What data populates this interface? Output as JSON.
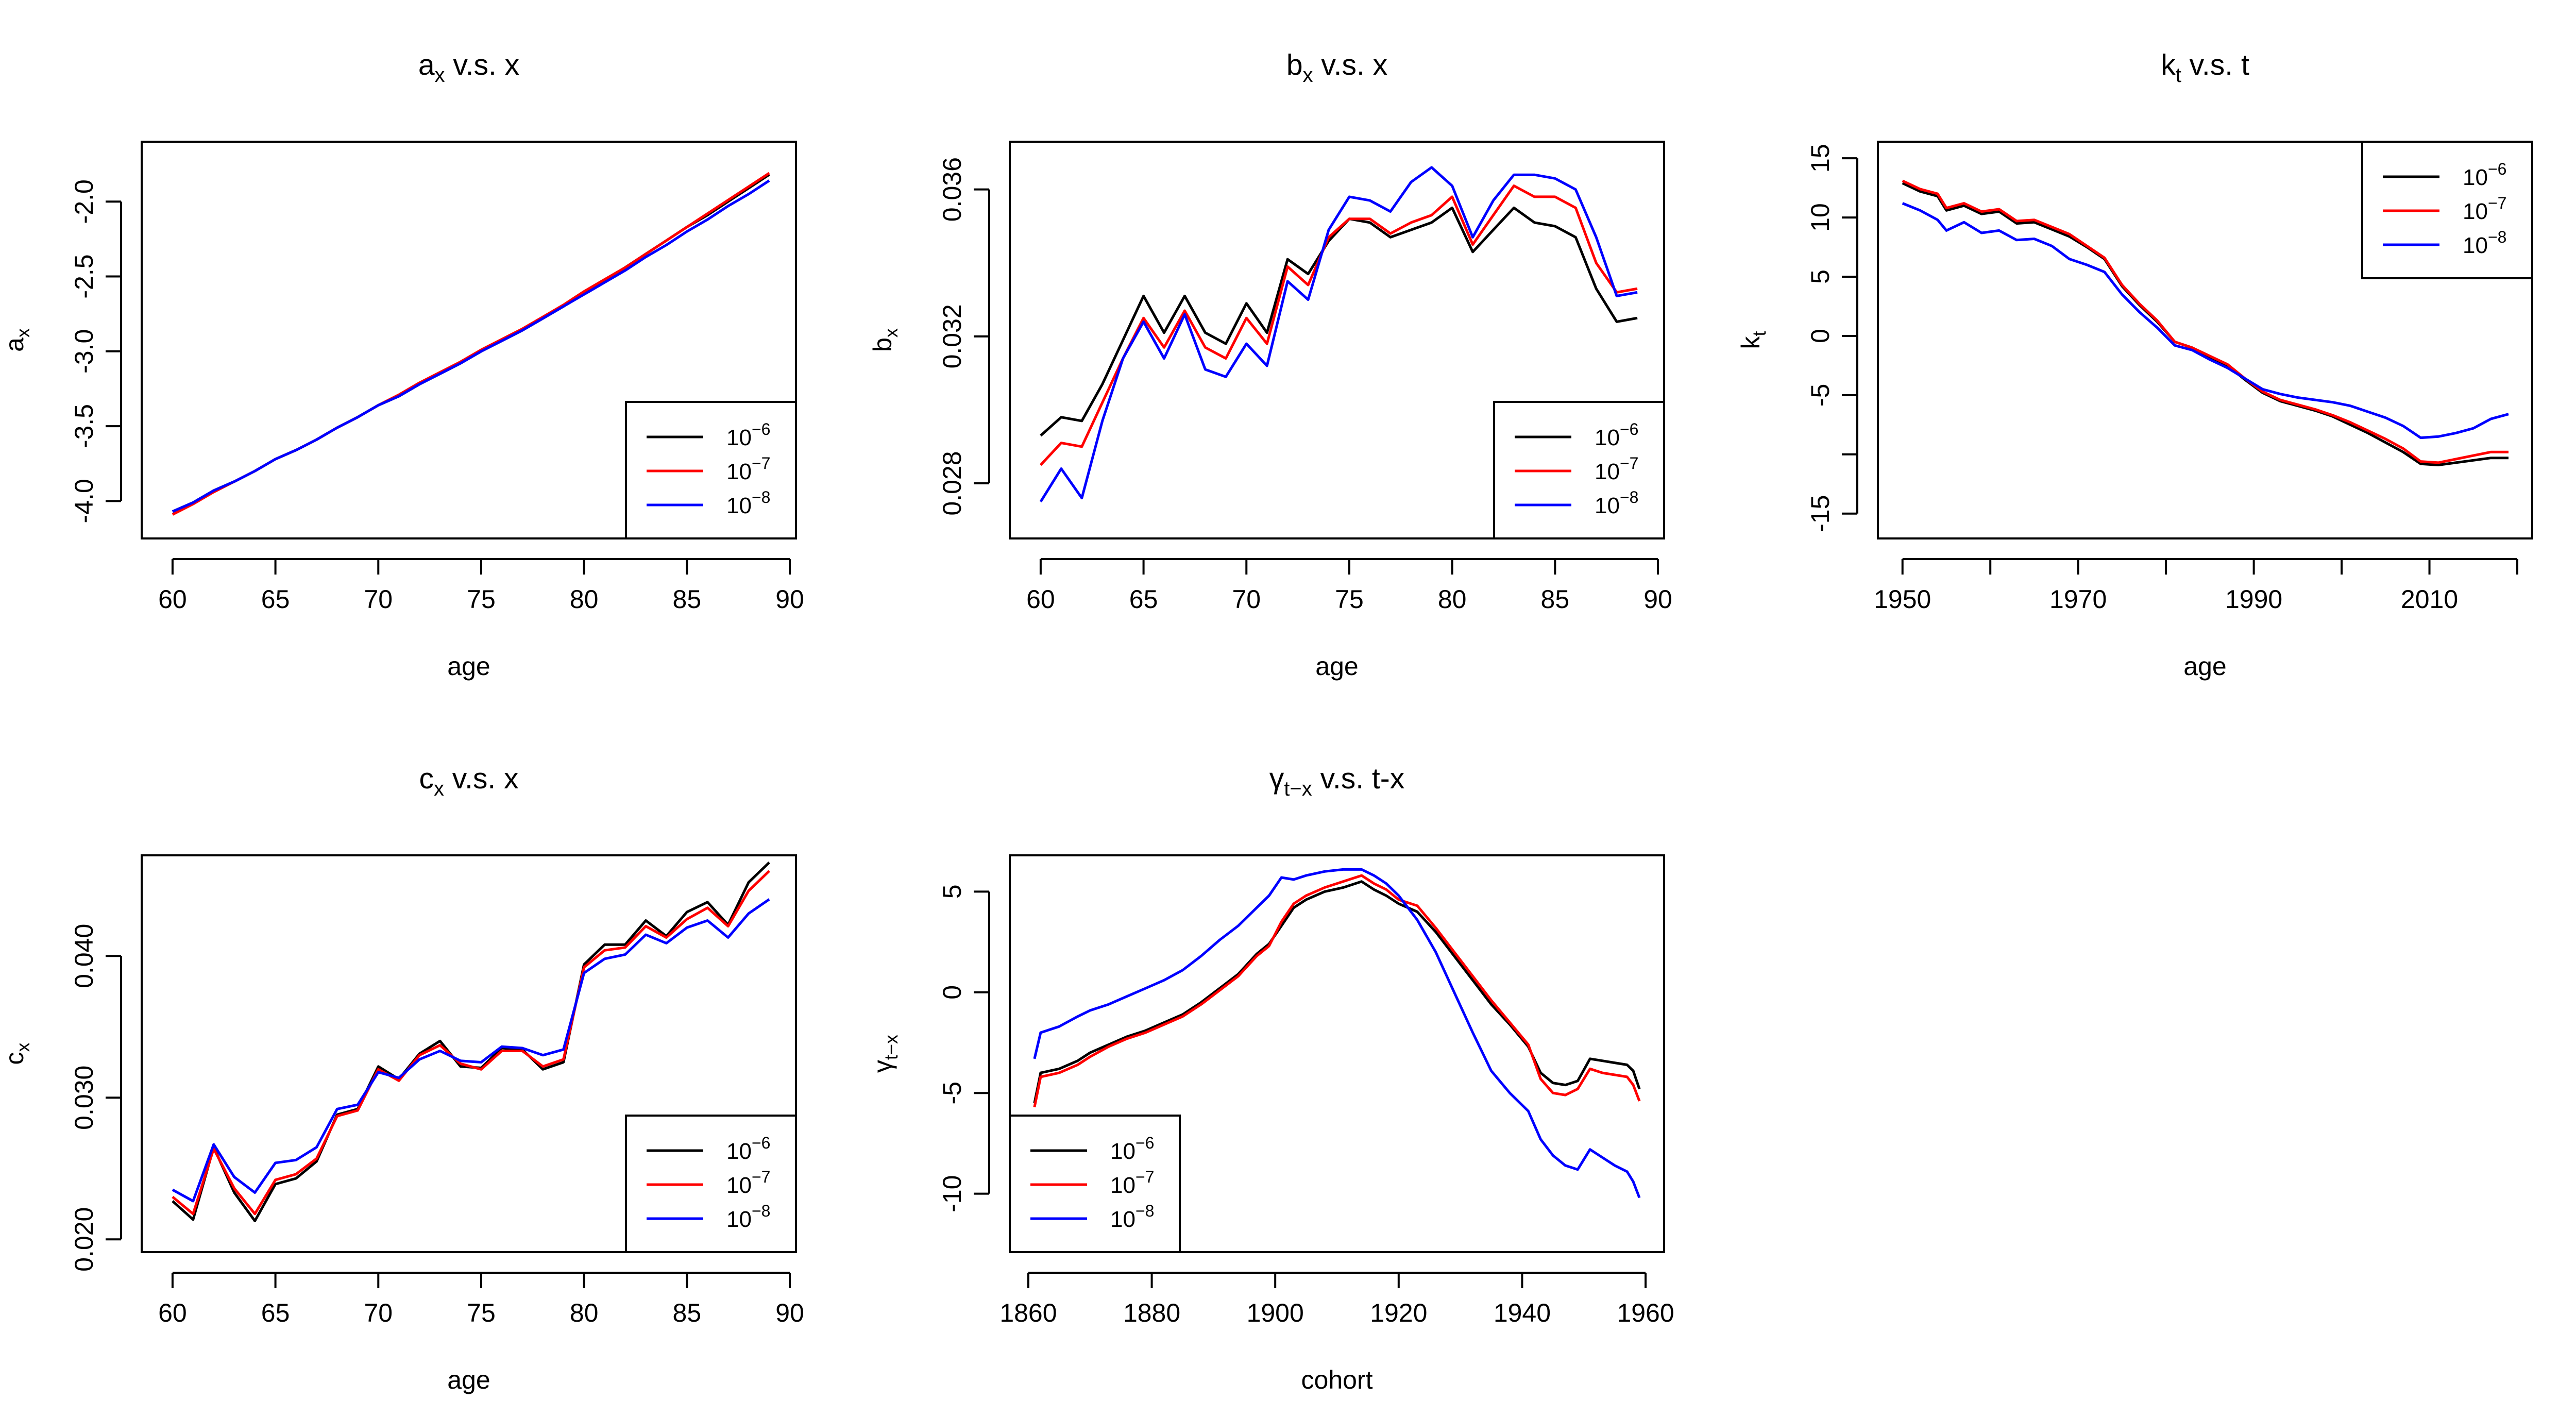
{
  "colors": {
    "tol_1e6": "#000000",
    "tol_1e7": "#ff0000",
    "tol_1e8": "#0000ff",
    "frame": "#000000",
    "background": "#ffffff"
  },
  "legend_entries": [
    {
      "base": "10",
      "exp": "−6",
      "color": "#000000"
    },
    {
      "base": "10",
      "exp": "−7",
      "color": "#ff0000"
    },
    {
      "base": "10",
      "exp": "−8",
      "color": "#0000ff"
    }
  ],
  "chart_data": [
    {
      "id": "ax",
      "type": "line",
      "title": {
        "main": "a",
        "sub": "x",
        "rest": " v.s. x"
      },
      "xlabel": "age",
      "ylabel": {
        "main": "a",
        "sub": "x"
      },
      "xlim": [
        58.5,
        90.3
      ],
      "ylim": [
        -4.25,
        -1.6
      ],
      "xticks": [
        60,
        65,
        70,
        75,
        80,
        85,
        90
      ],
      "yticks": [
        -4.0,
        -3.5,
        -3.0,
        -2.5,
        -2.0
      ],
      "ytick_labels": [
        "-4.0",
        "-3.5",
        "-3.0",
        "-2.5",
        "-2.0"
      ],
      "legend_pos": "bottom-right",
      "x": [
        60,
        61,
        62,
        63,
        64,
        65,
        66,
        67,
        68,
        69,
        70,
        71,
        72,
        73,
        74,
        75,
        76,
        77,
        78,
        79,
        80,
        81,
        82,
        83,
        84,
        85,
        86,
        87,
        88,
        89
      ],
      "series": [
        {
          "name": "10^-6",
          "color": "#000000",
          "values": [
            -4.07,
            -4.01,
            -3.93,
            -3.87,
            -3.8,
            -3.72,
            -3.66,
            -3.59,
            -3.51,
            -3.44,
            -3.36,
            -3.3,
            -3.22,
            -3.15,
            -3.08,
            -3.0,
            -2.93,
            -2.86,
            -2.78,
            -2.7,
            -2.61,
            -2.53,
            -2.44,
            -2.35,
            -2.26,
            -2.17,
            -2.09,
            -2.0,
            -1.91,
            -1.82
          ]
        },
        {
          "name": "10^-7",
          "color": "#ff0000",
          "values": [
            -4.09,
            -4.02,
            -3.94,
            -3.87,
            -3.8,
            -3.72,
            -3.66,
            -3.59,
            -3.51,
            -3.44,
            -3.36,
            -3.29,
            -3.21,
            -3.14,
            -3.07,
            -2.99,
            -2.92,
            -2.85,
            -2.77,
            -2.69,
            -2.6,
            -2.52,
            -2.44,
            -2.35,
            -2.26,
            -2.17,
            -2.08,
            -1.99,
            -1.9,
            -1.81
          ]
        },
        {
          "name": "10^-8",
          "color": "#0000ff",
          "values": [
            -4.07,
            -4.01,
            -3.93,
            -3.87,
            -3.8,
            -3.72,
            -3.66,
            -3.59,
            -3.51,
            -3.44,
            -3.36,
            -3.3,
            -3.22,
            -3.15,
            -3.08,
            -3.0,
            -2.93,
            -2.86,
            -2.78,
            -2.7,
            -2.62,
            -2.54,
            -2.46,
            -2.37,
            -2.29,
            -2.2,
            -2.12,
            -2.03,
            -1.95,
            -1.86
          ]
        }
      ]
    },
    {
      "id": "bx",
      "type": "line",
      "title": {
        "main": "b",
        "sub": "x",
        "rest": " v.s. x"
      },
      "xlabel": "age",
      "ylabel": {
        "main": "b",
        "sub": "x"
      },
      "xlim": [
        58.5,
        90.3
      ],
      "ylim": [
        0.0265,
        0.0373
      ],
      "xticks": [
        60,
        65,
        70,
        75,
        80,
        85,
        90
      ],
      "yticks": [
        0.028,
        0.032,
        0.036
      ],
      "ytick_labels": [
        "0.028",
        "0.032",
        "0.036"
      ],
      "legend_pos": "bottom-right",
      "x": [
        60,
        61,
        62,
        63,
        64,
        65,
        66,
        67,
        68,
        69,
        70,
        71,
        72,
        73,
        74,
        75,
        76,
        77,
        78,
        79,
        80,
        81,
        82,
        83,
        84,
        85,
        86,
        87,
        88,
        89
      ],
      "series": [
        {
          "name": "10^-6",
          "color": "#000000",
          "values": [
            0.0293,
            0.0298,
            0.0297,
            0.0307,
            0.0319,
            0.0331,
            0.0321,
            0.0331,
            0.0321,
            0.0318,
            0.0329,
            0.0321,
            0.0341,
            0.0337,
            0.0346,
            0.0352,
            0.0351,
            0.0347,
            0.0349,
            0.0351,
            0.0355,
            0.0343,
            0.0349,
            0.0355,
            0.0351,
            0.035,
            0.0347,
            0.0333,
            0.0324,
            0.0325
          ]
        },
        {
          "name": "10^-7",
          "color": "#ff0000",
          "values": [
            0.0285,
            0.0291,
            0.029,
            0.0302,
            0.0314,
            0.0325,
            0.0317,
            0.0327,
            0.0317,
            0.0314,
            0.0325,
            0.0318,
            0.0339,
            0.0334,
            0.0347,
            0.0352,
            0.0352,
            0.0348,
            0.0351,
            0.0353,
            0.0358,
            0.0345,
            0.0353,
            0.0361,
            0.0358,
            0.0358,
            0.0355,
            0.034,
            0.0332,
            0.0333
          ]
        },
        {
          "name": "10^-8",
          "color": "#0000ff",
          "values": [
            0.0275,
            0.0284,
            0.0276,
            0.0297,
            0.0314,
            0.0324,
            0.0314,
            0.0326,
            0.0311,
            0.0309,
            0.0318,
            0.0312,
            0.0335,
            0.033,
            0.0349,
            0.0358,
            0.0357,
            0.0354,
            0.0362,
            0.0366,
            0.0361,
            0.0347,
            0.0357,
            0.0364,
            0.0364,
            0.0363,
            0.036,
            0.0347,
            0.0331,
            0.0332
          ]
        }
      ]
    },
    {
      "id": "kt",
      "type": "line",
      "title": {
        "main": "k",
        "sub": "t",
        "rest": " v.s. t"
      },
      "xlabel": "age",
      "ylabel": {
        "main": "k",
        "sub": "t"
      },
      "xlim": [
        1947.2,
        2021.7
      ],
      "ylim": [
        -17.1,
        16.4
      ],
      "xticks": [
        1950,
        1960,
        1970,
        1980,
        1990,
        2000,
        2010,
        2020
      ],
      "xtick_labels": [
        "1950",
        "",
        "1970",
        "",
        "1990",
        "",
        "2010",
        ""
      ],
      "yticks": [
        -15,
        -10,
        -5,
        0,
        5,
        10,
        15
      ],
      "ytick_labels": [
        "-15",
        "",
        "-5",
        "0",
        "5",
        "10",
        "15"
      ],
      "legend_pos": "top-right",
      "x": [
        1950,
        1952,
        1954,
        1955,
        1957,
        1959,
        1961,
        1963,
        1965,
        1967,
        1969,
        1971,
        1973,
        1975,
        1977,
        1979,
        1981,
        1983,
        1985,
        1987,
        1989,
        1991,
        1993,
        1995,
        1997,
        1999,
        2001,
        2003,
        2005,
        2007,
        2009,
        2011,
        2013,
        2015,
        2017,
        2019
      ],
      "series": [
        {
          "name": "10^-6",
          "color": "#000000",
          "values": [
            12.9,
            12.2,
            11.8,
            10.6,
            11.0,
            10.3,
            10.5,
            9.5,
            9.6,
            9.0,
            8.4,
            7.5,
            6.5,
            4.2,
            2.6,
            1.2,
            -0.5,
            -1.0,
            -1.8,
            -2.5,
            -3.7,
            -4.8,
            -5.5,
            -5.9,
            -6.3,
            -6.8,
            -7.5,
            -8.2,
            -9.0,
            -9.8,
            -10.8,
            -10.9,
            -10.7,
            -10.5,
            -10.3,
            -10.3
          ]
        },
        {
          "name": "10^-7",
          "color": "#ff0000",
          "values": [
            13.1,
            12.4,
            12.0,
            10.8,
            11.2,
            10.5,
            10.7,
            9.7,
            9.8,
            9.2,
            8.6,
            7.6,
            6.6,
            4.3,
            2.7,
            1.3,
            -0.5,
            -1.0,
            -1.7,
            -2.4,
            -3.6,
            -4.7,
            -5.4,
            -5.8,
            -6.2,
            -6.7,
            -7.3,
            -8.0,
            -8.7,
            -9.5,
            -10.6,
            -10.7,
            -10.4,
            -10.1,
            -9.8,
            -9.8
          ]
        },
        {
          "name": "10^-8",
          "color": "#0000ff",
          "values": [
            11.2,
            10.6,
            9.8,
            8.9,
            9.6,
            8.7,
            8.9,
            8.1,
            8.2,
            7.6,
            6.5,
            6.0,
            5.4,
            3.5,
            2.0,
            0.7,
            -0.8,
            -1.2,
            -2.0,
            -2.7,
            -3.6,
            -4.5,
            -4.9,
            -5.2,
            -5.4,
            -5.6,
            -5.9,
            -6.4,
            -6.9,
            -7.6,
            -8.6,
            -8.5,
            -8.2,
            -7.8,
            -7.0,
            -6.6
          ]
        }
      ]
    },
    {
      "id": "cx",
      "type": "line",
      "title": {
        "main": "c",
        "sub": "x",
        "rest": " v.s. x"
      },
      "xlabel": "age",
      "ylabel": {
        "main": "c",
        "sub": "x"
      },
      "xlim": [
        58.5,
        90.3
      ],
      "ylim": [
        0.0191,
        0.0471
      ],
      "xticks": [
        60,
        65,
        70,
        75,
        80,
        85,
        90
      ],
      "yticks": [
        0.02,
        0.03,
        0.04
      ],
      "ytick_labels": [
        "0.020",
        "0.030",
        "0.040"
      ],
      "legend_pos": "bottom-right",
      "x": [
        60,
        61,
        62,
        63,
        64,
        65,
        66,
        67,
        68,
        69,
        70,
        71,
        72,
        73,
        74,
        75,
        76,
        77,
        78,
        79,
        80,
        81,
        82,
        83,
        84,
        85,
        86,
        87,
        88,
        89
      ],
      "series": [
        {
          "name": "10^-6",
          "color": "#000000",
          "values": [
            0.0227,
            0.0214,
            0.0265,
            0.0233,
            0.0213,
            0.0239,
            0.0243,
            0.0255,
            0.0288,
            0.0292,
            0.0322,
            0.0313,
            0.0331,
            0.034,
            0.0322,
            0.0321,
            0.0335,
            0.0334,
            0.032,
            0.0325,
            0.0394,
            0.0408,
            0.0408,
            0.0425,
            0.0414,
            0.0431,
            0.0438,
            0.0422,
            0.0452,
            0.0466
          ]
        },
        {
          "name": "10^-7",
          "color": "#ff0000",
          "values": [
            0.023,
            0.0218,
            0.0264,
            0.0236,
            0.0218,
            0.0242,
            0.0246,
            0.0257,
            0.0287,
            0.0291,
            0.032,
            0.0312,
            0.033,
            0.0337,
            0.0324,
            0.032,
            0.0333,
            0.0333,
            0.0322,
            0.0327,
            0.0392,
            0.0404,
            0.0406,
            0.0421,
            0.0413,
            0.0426,
            0.0434,
            0.0421,
            0.0446,
            0.046
          ]
        },
        {
          "name": "10^-8",
          "color": "#0000ff",
          "values": [
            0.0235,
            0.0227,
            0.0267,
            0.0244,
            0.0233,
            0.0254,
            0.0256,
            0.0265,
            0.0292,
            0.0295,
            0.0318,
            0.0314,
            0.0327,
            0.0333,
            0.0326,
            0.0325,
            0.0336,
            0.0335,
            0.033,
            0.0334,
            0.0388,
            0.0398,
            0.0401,
            0.0415,
            0.0409,
            0.042,
            0.0425,
            0.0413,
            0.043,
            0.044
          ]
        }
      ]
    },
    {
      "id": "gamma",
      "type": "line",
      "title": {
        "main": "γ",
        "sub": "t−x",
        "rest": " v.s. t-x"
      },
      "xlabel": "cohort",
      "ylabel": {
        "main": "γ",
        "sub": "t−x"
      },
      "xlim": [
        1857,
        1963
      ],
      "ylim": [
        -12.9,
        6.8
      ],
      "xticks": [
        1860,
        1880,
        1900,
        1920,
        1940,
        1960
      ],
      "yticks": [
        -10,
        -5,
        0,
        5
      ],
      "ytick_labels": [
        "-10",
        "-5",
        "0",
        "5"
      ],
      "legend_pos": "bottom-left",
      "x": [
        1861,
        1862,
        1865,
        1868,
        1870,
        1873,
        1876,
        1879,
        1882,
        1885,
        1888,
        1891,
        1894,
        1897,
        1899,
        1901,
        1903,
        1905,
        1908,
        1911,
        1914,
        1916,
        1918,
        1920,
        1923,
        1926,
        1929,
        1932,
        1935,
        1938,
        1941,
        1943,
        1945,
        1947,
        1949,
        1951,
        1953,
        1955,
        1957,
        1958,
        1959
      ],
      "series": [
        {
          "name": "10^-6",
          "color": "#000000",
          "values": [
            -5.5,
            -4.0,
            -3.8,
            -3.4,
            -3.0,
            -2.6,
            -2.2,
            -1.9,
            -1.5,
            -1.1,
            -0.5,
            0.2,
            0.9,
            1.9,
            2.4,
            3.3,
            4.2,
            4.6,
            5.0,
            5.2,
            5.5,
            5.1,
            4.8,
            4.4,
            4.0,
            3.0,
            1.8,
            0.6,
            -0.6,
            -1.6,
            -2.7,
            -4.0,
            -4.5,
            -4.6,
            -4.4,
            -3.3,
            -3.4,
            -3.5,
            -3.6,
            -3.9,
            -4.8
          ]
        },
        {
          "name": "10^-7",
          "color": "#ff0000",
          "values": [
            -5.7,
            -4.2,
            -4.0,
            -3.6,
            -3.2,
            -2.7,
            -2.3,
            -2.0,
            -1.6,
            -1.2,
            -0.6,
            0.1,
            0.8,
            1.8,
            2.3,
            3.5,
            4.4,
            4.8,
            5.2,
            5.5,
            5.8,
            5.4,
            5.1,
            4.6,
            4.3,
            3.2,
            2.0,
            0.8,
            -0.4,
            -1.5,
            -2.6,
            -4.3,
            -5.0,
            -5.1,
            -4.8,
            -3.8,
            -4.0,
            -4.1,
            -4.2,
            -4.6,
            -5.4
          ]
        },
        {
          "name": "10^-8",
          "color": "#0000ff",
          "values": [
            -3.3,
            -2.0,
            -1.7,
            -1.2,
            -0.9,
            -0.6,
            -0.2,
            0.2,
            0.6,
            1.1,
            1.8,
            2.6,
            3.3,
            4.2,
            4.8,
            5.7,
            5.6,
            5.8,
            6.0,
            6.1,
            6.1,
            5.8,
            5.4,
            4.8,
            3.6,
            2.0,
            0.0,
            -2.0,
            -3.9,
            -5.0,
            -5.9,
            -7.3,
            -8.1,
            -8.6,
            -8.8,
            -7.8,
            -8.2,
            -8.6,
            -8.9,
            -9.4,
            -10.2
          ]
        }
      ]
    }
  ]
}
